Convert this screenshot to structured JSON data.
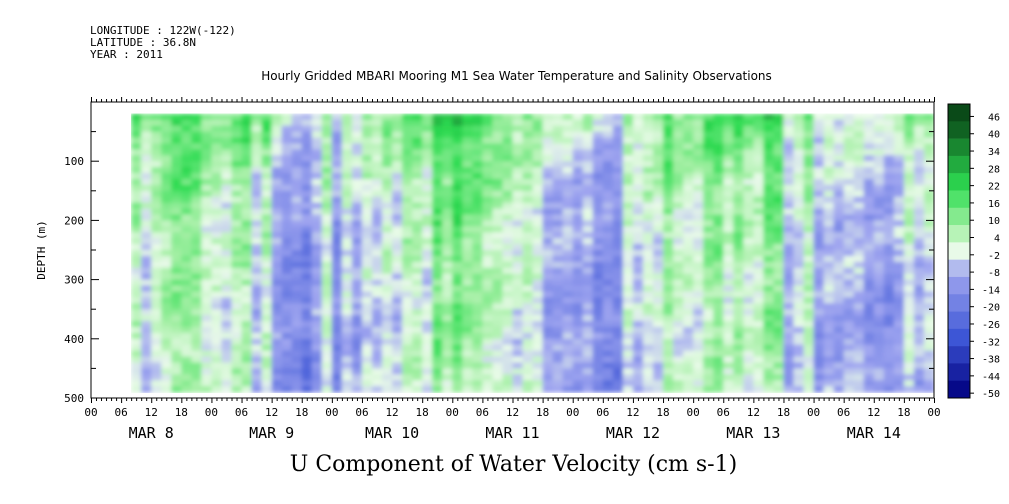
{
  "header": {
    "longitude": "LONGITUDE : 122W(-122)",
    "latitude": "LATITUDE : 36.8N",
    "year": "YEAR : 2011"
  },
  "title": "Hourly Gridded MBARI Mooring M1 Sea Water Temperature and Salinity Observations",
  "footer_label": "U Component of Water Velocity (cm s-1)",
  "chart_data": {
    "type": "heatmap",
    "title": "Hourly Gridded MBARI Mooring M1 Sea Water Temperature and Salinity Observations",
    "xlabel": "",
    "ylabel": "DEPTH (m)",
    "variable": "U Component of Water Velocity (cm s-1)",
    "x_range": [
      "2011-03-08 00:00",
      "2011-03-15 00:00"
    ],
    "data_x_start": "2011-03-08 08:00",
    "x_hour_ticks": [
      "00",
      "06",
      "12",
      "18",
      "00",
      "06",
      "12",
      "18",
      "00",
      "06",
      "12",
      "18",
      "00",
      "06",
      "12",
      "18",
      "00",
      "06",
      "12",
      "18",
      "00",
      "06",
      "12",
      "18",
      "00",
      "06",
      "12",
      "18",
      "00"
    ],
    "x_day_labels": [
      "MAR  8",
      "MAR  9",
      "MAR 10",
      "MAR 11",
      "MAR 12",
      "MAR 13",
      "MAR 14"
    ],
    "y_range": [
      500,
      0
    ],
    "data_depth_range": [
      20,
      485
    ],
    "y_ticks": [
      100,
      200,
      300,
      400,
      500
    ],
    "colorbar_levels": [
      -50,
      -44,
      -38,
      -32,
      -26,
      -20,
      -14,
      -8,
      -2,
      4,
      10,
      16,
      22,
      28,
      34,
      40,
      46
    ],
    "colorbar_labels": [
      "46",
      "40",
      "34",
      "28",
      "22",
      "16",
      "10",
      "4",
      "-2",
      "-8",
      "-14",
      "-20",
      "-26",
      "-32",
      "-38",
      "-44",
      "-50"
    ],
    "colors": {
      "strong_negative": "#000080",
      "mid_negative": "#3d56d6",
      "weak_negative": "#a0a6f0",
      "near_zero": "#e8fae8",
      "weak_positive": "#a6f0a6",
      "mid_positive": "#2edc52",
      "strong_positive": "#0a4a18"
    },
    "grid": false
  }
}
